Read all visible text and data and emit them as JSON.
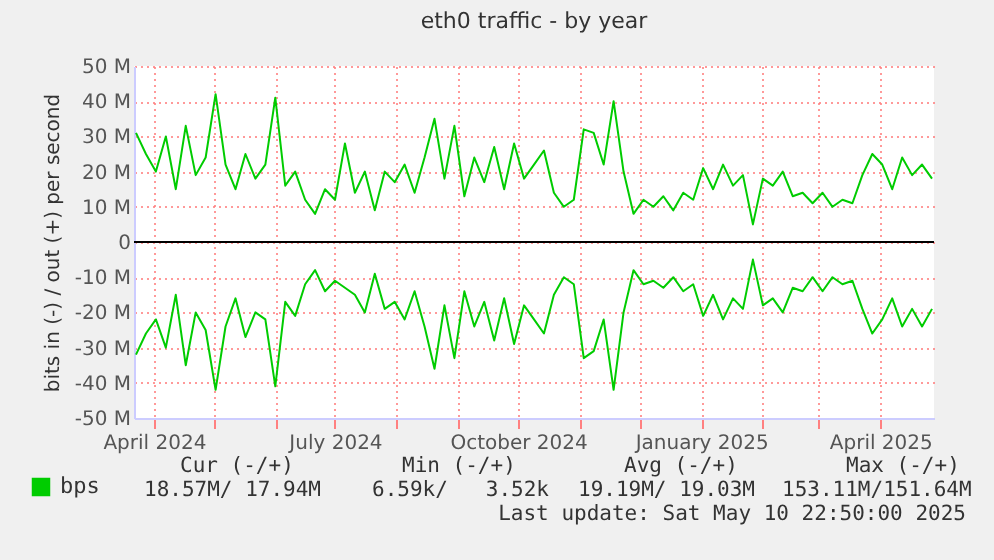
{
  "chart_data": {
    "type": "line",
    "title": "eth0 traffic - by year",
    "ylabel": "bits in (-) / out (+) per second",
    "x": [
      "2024-03-23",
      "2024-03-28",
      "2024-04-02",
      "2024-04-07",
      "2024-04-12",
      "2024-04-17",
      "2024-04-22",
      "2024-04-27",
      "2024-05-02",
      "2024-05-07",
      "2024-05-12",
      "2024-05-17",
      "2024-05-22",
      "2024-05-27",
      "2024-06-01",
      "2024-06-06",
      "2024-06-11",
      "2024-06-16",
      "2024-06-21",
      "2024-06-26",
      "2024-07-01",
      "2024-07-06",
      "2024-07-11",
      "2024-07-16",
      "2024-07-21",
      "2024-07-26",
      "2024-07-31",
      "2024-08-05",
      "2024-08-10",
      "2024-08-15",
      "2024-08-20",
      "2024-08-25",
      "2024-08-30",
      "2024-09-04",
      "2024-09-09",
      "2024-09-14",
      "2024-09-19",
      "2024-09-24",
      "2024-09-29",
      "2024-10-04",
      "2024-10-09",
      "2024-10-14",
      "2024-10-19",
      "2024-10-24",
      "2024-10-29",
      "2024-11-03",
      "2024-11-08",
      "2024-11-13",
      "2024-11-18",
      "2024-11-23",
      "2024-11-28",
      "2024-12-03",
      "2024-12-08",
      "2024-12-13",
      "2024-12-18",
      "2024-12-23",
      "2024-12-28",
      "2025-01-02",
      "2025-01-07",
      "2025-01-12",
      "2025-01-17",
      "2025-01-22",
      "2025-01-27",
      "2025-02-01",
      "2025-02-06",
      "2025-02-11",
      "2025-02-16",
      "2025-02-21",
      "2025-02-26",
      "2025-03-03",
      "2025-03-08",
      "2025-03-13",
      "2025-03-18",
      "2025-03-23",
      "2025-03-28",
      "2025-04-02",
      "2025-04-07",
      "2025-04-12",
      "2025-04-17",
      "2025-04-22",
      "2025-04-27"
    ],
    "series": [
      {
        "name": "bps",
        "color": "#00cc00",
        "values": [
          31,
          25,
          20,
          30,
          15,
          33,
          19,
          24,
          42,
          22,
          15,
          25,
          18,
          22,
          41,
          16,
          20,
          12,
          8,
          15,
          12,
          28,
          14,
          20,
          9,
          20,
          17,
          22,
          14,
          24,
          35,
          18,
          33,
          13,
          24,
          17,
          27,
          15,
          28,
          18,
          22,
          26,
          14,
          10,
          12,
          32,
          31,
          22,
          40,
          20,
          8,
          12,
          10,
          13,
          9,
          14,
          12,
          21,
          15,
          22,
          16,
          19,
          5,
          18,
          16,
          20,
          13,
          14,
          11,
          14,
          10,
          12,
          11,
          19,
          25,
          22,
          15,
          24,
          19,
          22,
          18
        ]
      },
      {
        "color": "#00cc00",
        "values": [
          -32,
          -26,
          -22,
          -30,
          -15,
          -35,
          -20,
          -25,
          -42,
          -24,
          -16,
          -27,
          -20,
          -22,
          -41,
          -17,
          -21,
          -12,
          -8,
          -14,
          -11,
          -13,
          -15,
          -20,
          -9,
          -19,
          -17,
          -22,
          -14,
          -24,
          -36,
          -18,
          -33,
          -14,
          -24,
          -17,
          -28,
          -16,
          -29,
          -18,
          -22,
          -26,
          -15,
          -10,
          -12,
          -33,
          -31,
          -22,
          -42,
          -20,
          -8,
          -12,
          -11,
          -13,
          -10,
          -14,
          -12,
          -21,
          -15,
          -22,
          -16,
          -19,
          -5,
          -18,
          -16,
          -20,
          -13,
          -14,
          -10,
          -14,
          -10,
          -12,
          -11,
          -19,
          -26,
          -22,
          -16,
          -24,
          -19,
          -24,
          -19
        ]
      }
    ],
    "xlim": [
      "2024-03-22",
      "2025-04-28"
    ],
    "xticks": [
      {
        "value": "2024-04-01",
        "label": "April 2024"
      },
      {
        "value": "2024-05-01",
        "label": null
      },
      {
        "value": "2024-06-01",
        "label": null
      },
      {
        "value": "2024-07-01",
        "label": "July 2024"
      },
      {
        "value": "2024-08-01",
        "label": null
      },
      {
        "value": "2024-09-01",
        "label": null
      },
      {
        "value": "2024-10-01",
        "label": "October 2024"
      },
      {
        "value": "2024-11-01",
        "label": null
      },
      {
        "value": "2024-12-01",
        "label": null
      },
      {
        "value": "2025-01-01",
        "label": "January 2025"
      },
      {
        "value": "2025-02-01",
        "label": null
      },
      {
        "value": "2025-03-01",
        "label": null
      },
      {
        "value": "2025-04-01",
        "label": "April 2025"
      }
    ],
    "ylim": [
      -50,
      50
    ],
    "yticks": [
      {
        "value": -50,
        "label": "-50 M"
      },
      {
        "value": -40,
        "label": "-40 M"
      },
      {
        "value": -30,
        "label": "-30 M"
      },
      {
        "value": -20,
        "label": "-20 M"
      },
      {
        "value": -10,
        "label": "-10 M"
      },
      0,
      {
        "value": 10,
        "label": "10 M"
      },
      {
        "value": 20,
        "label": "20 M"
      },
      {
        "value": 30,
        "label": "30 M"
      },
      {
        "value": 40,
        "label": "40 M"
      },
      {
        "value": 50,
        "label": "50 M"
      }
    ],
    "grid": true,
    "legend": "bottom left",
    "ref_lines": [
      {
        "axis": "y",
        "value": 0,
        "color": "#000000"
      }
    ],
    "annotations": [
      "Cur (-/+)",
      "Min (-/+)",
      "Avg (-/+)",
      "Max (-/+)",
      "18.57M/ 17.94M",
      "6.59k/   3.52k",
      "19.19M/ 19.03M",
      "153.11M/151.64M",
      "Last update: Sat May 10 22:50:00 2025"
    ]
  }
}
